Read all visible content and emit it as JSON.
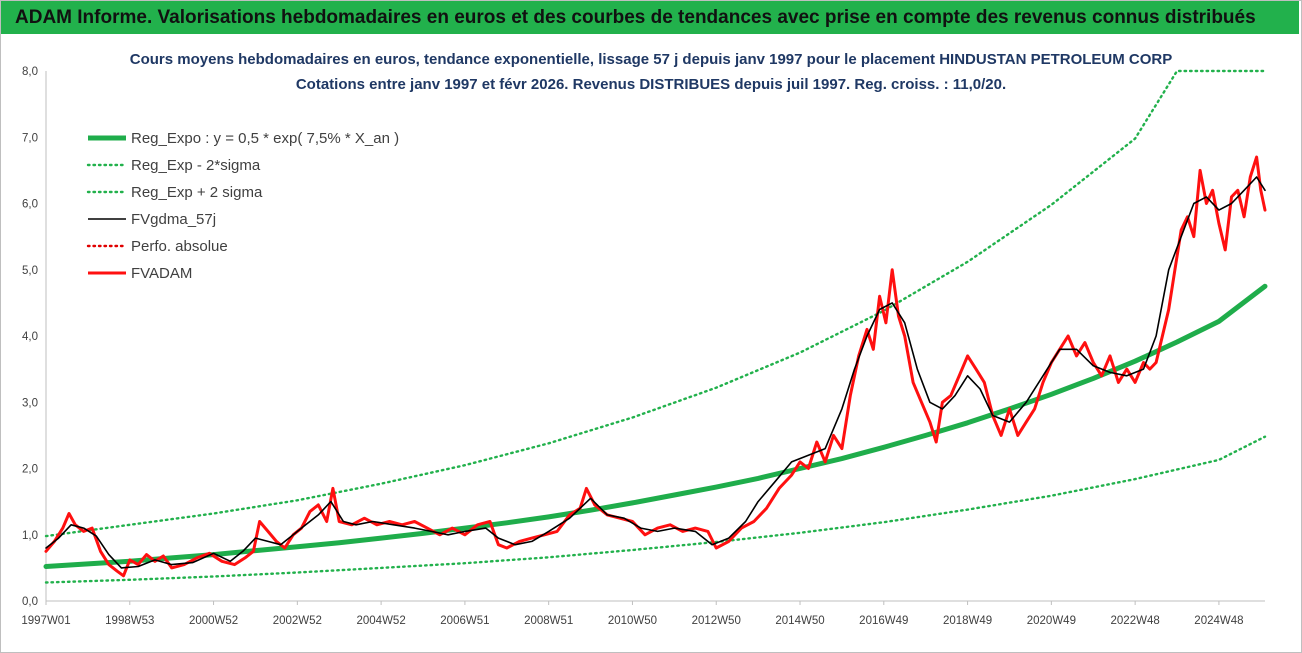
{
  "header": {
    "banner": "ADAM Informe. Valorisations hebdomadaires en euros et des courbes de tendances avec prise en compte des revenus connus distribués"
  },
  "chart_data": {
    "type": "line",
    "title": "Cours moyens hebdomadaires en euros, tendance exponentielle, lissage 57 j depuis janv 1997 pour le placement HINDUSTAN PETROLEUM CORP",
    "subtitle": "Cotations entre janv 1997 et févr 2026. Revenus DISTRIBUES depuis juil 1997. Reg. croiss. : 11,0/20.",
    "xlabel": "",
    "ylabel": "",
    "ylim": [
      0,
      8
    ],
    "xlim": [
      1997.0,
      2026.1
    ],
    "grid": false,
    "legend_position": "top-left",
    "y_ticks": [
      "0,0",
      "1,0",
      "2,0",
      "3,0",
      "4,0",
      "5,0",
      "6,0",
      "7,0",
      "8,0"
    ],
    "x_ticks": [
      "1997W01",
      "1998W53",
      "2000W52",
      "2002W52",
      "2004W52",
      "2006W51",
      "2008W51",
      "2010W50",
      "2012W50",
      "2014W50",
      "2016W49",
      "2018W49",
      "2020W49",
      "2022W48",
      "2024W48"
    ],
    "x_tick_years": [
      1997.0,
      1999.0,
      2001.0,
      2003.0,
      2005.0,
      2007.0,
      2009.0,
      2011.0,
      2013.0,
      2015.0,
      2017.0,
      2019.0,
      2021.0,
      2023.0,
      2025.0
    ],
    "series": [
      {
        "name": "Reg_Expo : y = 0,5 * exp( 7,5% *  X_an )",
        "color": "#1fad4b",
        "style": "solid-thick",
        "x": [
          1997,
          1998,
          1999,
          2000,
          2001,
          2002,
          2003,
          2004,
          2005,
          2006,
          2007,
          2008,
          2009,
          2010,
          2011,
          2012,
          2013,
          2014,
          2015,
          2016,
          2017,
          2018,
          2019,
          2020,
          2021,
          2022,
          2023,
          2024,
          2025,
          2026.1
        ],
        "y": [
          0.52,
          0.56,
          0.6,
          0.65,
          0.7,
          0.76,
          0.82,
          0.88,
          0.95,
          1.02,
          1.1,
          1.18,
          1.27,
          1.37,
          1.48,
          1.6,
          1.72,
          1.85,
          2.0,
          2.15,
          2.32,
          2.5,
          2.69,
          2.9,
          3.12,
          3.36,
          3.62,
          3.91,
          4.22,
          4.75
        ]
      },
      {
        "name": "Reg_Exp - 2*sigma",
        "color": "#22b14c",
        "style": "dotted",
        "x": [
          1997,
          1999,
          2001,
          2003,
          2005,
          2007,
          2009,
          2011,
          2013,
          2015,
          2017,
          2019,
          2021,
          2023,
          2025,
          2026.1
        ],
        "y": [
          0.28,
          0.32,
          0.37,
          0.43,
          0.5,
          0.57,
          0.66,
          0.77,
          0.89,
          1.03,
          1.19,
          1.38,
          1.59,
          1.84,
          2.13,
          2.48
        ]
      },
      {
        "name": "Reg_Exp + 2 sigma",
        "color": "#22b14c",
        "style": "dotted",
        "x": [
          1997,
          1999,
          2001,
          2003,
          2005,
          2007,
          2009,
          2011,
          2013,
          2015,
          2017,
          2019,
          2021,
          2023,
          2024.0,
          2026.1
        ],
        "y": [
          0.98,
          1.15,
          1.32,
          1.52,
          1.77,
          2.05,
          2.38,
          2.77,
          3.22,
          3.75,
          4.38,
          5.12,
          5.98,
          6.98,
          8.0,
          8.0
        ]
      },
      {
        "name": "FVgdma_57j",
        "color": "#000000",
        "style": "solid",
        "x": [
          1997.0,
          1997.3,
          1997.6,
          1997.9,
          1998.2,
          1998.5,
          1998.8,
          1999.2,
          1999.6,
          2000.0,
          2000.5,
          2001.0,
          2001.4,
          2001.7,
          2002.0,
          2002.3,
          2002.6,
          2002.9,
          2003.2,
          2003.5,
          2003.8,
          2004.1,
          2004.4,
          2004.8,
          2005.3,
          2005.8,
          2006.2,
          2006.6,
          2007.0,
          2007.5,
          2007.8,
          2008.2,
          2008.6,
          2009.0,
          2009.5,
          2010.0,
          2010.4,
          2010.8,
          2011.2,
          2011.6,
          2012.0,
          2012.5,
          2012.9,
          2013.3,
          2013.7,
          2014.0,
          2014.4,
          2014.8,
          2015.2,
          2015.6,
          2016.0,
          2016.3,
          2016.6,
          2016.9,
          2017.2,
          2017.5,
          2017.8,
          2018.1,
          2018.4,
          2018.7,
          2019.0,
          2019.3,
          2019.6,
          2020.0,
          2020.4,
          2020.8,
          2021.2,
          2021.6,
          2022.0,
          2022.4,
          2022.8,
          2023.2,
          2023.5,
          2023.8,
          2024.1,
          2024.4,
          2024.7,
          2025.0,
          2025.3,
          2025.6,
          2025.9,
          2026.1
        ],
        "y": [
          0.8,
          0.95,
          1.15,
          1.1,
          0.98,
          0.7,
          0.5,
          0.52,
          0.62,
          0.55,
          0.58,
          0.72,
          0.6,
          0.75,
          0.95,
          0.9,
          0.85,
          1.0,
          1.15,
          1.3,
          1.5,
          1.2,
          1.15,
          1.2,
          1.15,
          1.1,
          1.05,
          1.0,
          1.05,
          1.1,
          0.95,
          0.85,
          0.9,
          1.05,
          1.25,
          1.55,
          1.3,
          1.25,
          1.1,
          1.05,
          1.1,
          1.05,
          0.85,
          0.95,
          1.2,
          1.5,
          1.8,
          2.1,
          2.2,
          2.3,
          2.9,
          3.5,
          4.0,
          4.4,
          4.5,
          4.2,
          3.5,
          3.0,
          2.9,
          3.1,
          3.4,
          3.2,
          2.8,
          2.7,
          3.0,
          3.4,
          3.8,
          3.8,
          3.55,
          3.45,
          3.4,
          3.5,
          4.0,
          5.0,
          5.5,
          6.0,
          6.1,
          5.9,
          6.0,
          6.2,
          6.4,
          6.2
        ]
      },
      {
        "name": "Perfo. absolue",
        "color": "#e00000",
        "style": "dotted",
        "x": [],
        "y": []
      },
      {
        "name": "FVADAM",
        "color": "#ff1010",
        "style": "solid-thick",
        "x": [
          1997.0,
          1997.2,
          1997.4,
          1997.55,
          1997.7,
          1997.9,
          1998.1,
          1998.3,
          1998.5,
          1998.7,
          1998.85,
          1999.0,
          1999.2,
          1999.4,
          1999.6,
          1999.8,
          2000.0,
          2000.3,
          2000.6,
          2000.9,
          2001.2,
          2001.5,
          2001.75,
          2001.95,
          2002.1,
          2002.3,
          2002.5,
          2002.7,
          2002.9,
          2003.1,
          2003.3,
          2003.5,
          2003.7,
          2003.85,
          2004.0,
          2004.3,
          2004.6,
          2004.9,
          2005.2,
          2005.5,
          2005.8,
          2006.1,
          2006.4,
          2006.7,
          2007.0,
          2007.3,
          2007.6,
          2007.8,
          2008.0,
          2008.3,
          2008.6,
          2008.9,
          2009.2,
          2009.5,
          2009.75,
          2009.9,
          2010.1,
          2010.4,
          2010.7,
          2011.0,
          2011.3,
          2011.6,
          2011.9,
          2012.2,
          2012.5,
          2012.8,
          2013.0,
          2013.3,
          2013.6,
          2013.9,
          2014.2,
          2014.5,
          2014.8,
          2015.0,
          2015.2,
          2015.4,
          2015.6,
          2015.8,
          2016.0,
          2016.2,
          2016.4,
          2016.6,
          2016.75,
          2016.9,
          2017.05,
          2017.2,
          2017.35,
          2017.5,
          2017.7,
          2017.9,
          2018.1,
          2018.25,
          2018.4,
          2018.6,
          2018.8,
          2019.0,
          2019.2,
          2019.4,
          2019.6,
          2019.8,
          2020.0,
          2020.2,
          2020.4,
          2020.6,
          2020.8,
          2021.0,
          2021.2,
          2021.4,
          2021.6,
          2021.8,
          2022.0,
          2022.2,
          2022.4,
          2022.6,
          2022.8,
          2023.0,
          2023.2,
          2023.35,
          2023.5,
          2023.65,
          2023.8,
          2023.95,
          2024.1,
          2024.25,
          2024.4,
          2024.55,
          2024.7,
          2024.85,
          2025.0,
          2025.15,
          2025.3,
          2025.45,
          2025.6,
          2025.75,
          2025.9,
          2026.0,
          2026.1
        ],
        "y": [
          0.75,
          0.9,
          1.1,
          1.32,
          1.15,
          1.05,
          1.1,
          0.75,
          0.55,
          0.45,
          0.38,
          0.62,
          0.55,
          0.7,
          0.6,
          0.68,
          0.5,
          0.55,
          0.65,
          0.72,
          0.6,
          0.55,
          0.65,
          0.75,
          1.2,
          1.05,
          0.9,
          0.8,
          1.0,
          1.1,
          1.35,
          1.45,
          1.2,
          1.7,
          1.2,
          1.15,
          1.25,
          1.15,
          1.2,
          1.15,
          1.2,
          1.1,
          1.0,
          1.1,
          1.0,
          1.15,
          1.2,
          0.85,
          0.8,
          0.9,
          0.95,
          1.0,
          1.05,
          1.3,
          1.4,
          1.7,
          1.45,
          1.3,
          1.25,
          1.2,
          1.0,
          1.1,
          1.15,
          1.05,
          1.1,
          1.05,
          0.8,
          0.9,
          1.1,
          1.2,
          1.4,
          1.7,
          1.9,
          2.1,
          2.0,
          2.4,
          2.1,
          2.5,
          2.3,
          3.1,
          3.7,
          4.1,
          3.8,
          4.6,
          4.2,
          5.0,
          4.3,
          4.0,
          3.3,
          3.0,
          2.7,
          2.4,
          3.0,
          3.1,
          3.4,
          3.7,
          3.5,
          3.3,
          2.8,
          2.5,
          2.9,
          2.5,
          2.7,
          2.9,
          3.3,
          3.6,
          3.8,
          4.0,
          3.7,
          3.9,
          3.6,
          3.4,
          3.7,
          3.3,
          3.5,
          3.3,
          3.6,
          3.5,
          3.6,
          4.0,
          4.4,
          5.0,
          5.6,
          5.8,
          5.5,
          6.5,
          6.0,
          6.2,
          5.7,
          5.3,
          6.1,
          6.2,
          5.8,
          6.4,
          6.7,
          6.2,
          5.9
        ]
      }
    ]
  }
}
